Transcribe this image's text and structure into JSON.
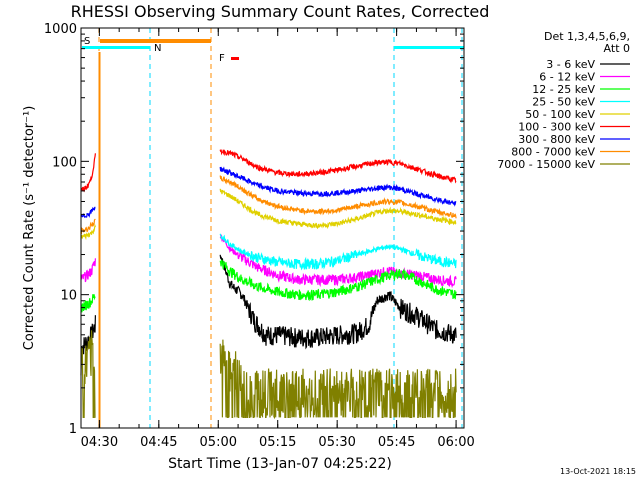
{
  "chart_data": {
    "type": "line",
    "title": "RHESSI Observing Summary Count Rates, Corrected",
    "xlabel": "Start Time (13-Jan-07 04:25:22)",
    "ylabel": "Corrected Count Rate (s⁻¹ detector⁻¹)",
    "y_scale": "log",
    "ylim": [
      1,
      1000
    ],
    "xlim": [
      "04:25:22",
      "06:02:00"
    ],
    "x_ticks": [
      "04:30",
      "04:45",
      "05:00",
      "05:15",
      "05:30",
      "05:45",
      "06:00"
    ],
    "y_ticks": [
      "1",
      "10",
      "100",
      "1000"
    ],
    "grid": false,
    "legend": {
      "position": "right",
      "header": [
        "Det 1,3,4,5,6,9,",
        "Att 0"
      ],
      "entries": [
        {
          "label": "3 - 6 keV",
          "color": "#000000"
        },
        {
          "label": "6 - 12 keV",
          "color": "#ff00ff"
        },
        {
          "label": "12 - 25 keV",
          "color": "#00ff00"
        },
        {
          "label": "25 - 50 keV",
          "color": "#00ffff"
        },
        {
          "label": "50 - 100 keV",
          "color": "#e0d000"
        },
        {
          "label": "100 - 300 keV",
          "color": "#ff0000"
        },
        {
          "label": "300 - 800 keV",
          "color": "#0000ff"
        },
        {
          "label": "800 - 7000 keV",
          "color": "#ff8c00"
        },
        {
          "label": "7000 - 15000 keV",
          "color": "#808000"
        }
      ]
    },
    "flags": [
      {
        "label": "S",
        "color": "#ff8c00"
      },
      {
        "label": "N",
        "color": "#00ffff"
      },
      {
        "label": "F",
        "color": "#ff0000"
      }
    ],
    "series": [
      {
        "name": "3 - 6 keV",
        "color": "#000000",
        "segments": [
          {
            "x": [
              "04:25:22",
              "04:27:00",
              "04:28:00",
              "04:29:00"
            ],
            "y": [
              4,
              4.5,
              5,
              6
            ]
          },
          {
            "x": [
              "05:00:30",
              "05:03:00",
              "05:06:00",
              "05:09:00",
              "05:12:00",
              "05:15:00",
              "05:20:00",
              "05:25:00",
              "05:30:00",
              "05:35:00",
              "05:38:00",
              "05:40:00",
              "05:43:00",
              "05:46:00",
              "05:50:00",
              "05:55:00",
              "06:00:00"
            ],
            "y": [
              20,
              12,
              10,
              6.5,
              5,
              5,
              4.8,
              4.8,
              5,
              5.2,
              6,
              9,
              10,
              8,
              7,
              5.5,
              5
            ]
          }
        ]
      },
      {
        "name": "6 - 12 keV",
        "color": "#ff00ff",
        "segments": [
          {
            "x": [
              "04:25:22",
              "04:27:00",
              "04:28:00",
              "04:29:00"
            ],
            "y": [
              13,
              14,
              15,
              18
            ]
          },
          {
            "x": [
              "05:00:30",
              "05:03:00",
              "05:06:00",
              "05:10:00",
              "05:15:00",
              "05:20:00",
              "05:25:00",
              "05:30:00",
              "05:35:00",
              "05:40:00",
              "05:43:00",
              "05:46:00",
              "05:50:00",
              "05:55:00",
              "06:00:00"
            ],
            "y": [
              28,
              22,
              19,
              16,
              14,
              13,
              13,
              13,
              13.5,
              14.5,
              15,
              14.5,
              14,
              13,
              12.5
            ]
          }
        ]
      },
      {
        "name": "12 - 25 keV",
        "color": "#00ff00",
        "segments": [
          {
            "x": [
              "04:25:22",
              "04:27:00",
              "04:28:00",
              "04:29:00"
            ],
            "y": [
              8,
              8.5,
              9,
              10
            ]
          },
          {
            "x": [
              "05:00:30",
              "05:03:00",
              "05:06:00",
              "05:10:00",
              "05:15:00",
              "05:20:00",
              "05:25:00",
              "05:30:00",
              "05:35:00",
              "05:40:00",
              "05:43:00",
              "05:46:00",
              "05:50:00",
              "05:55:00",
              "06:00:00"
            ],
            "y": [
              18,
              15,
              13,
              11.5,
              10.5,
              10,
              10,
              10.5,
              11.5,
              13,
              14,
              14.5,
              13,
              11,
              10
            ]
          }
        ]
      },
      {
        "name": "25 - 50 keV",
        "color": "#00ffff",
        "segments": [
          {
            "x": [
              "05:00:30",
              "05:03:00",
              "05:06:00",
              "05:10:00",
              "05:15:00",
              "05:20:00",
              "05:25:00",
              "05:30:00",
              "05:35:00",
              "05:40:00",
              "05:43:00",
              "05:46:00",
              "05:50:00",
              "05:55:00",
              "06:00:00"
            ],
            "y": [
              28,
              24,
              21,
              19,
              17.5,
              17,
              17,
              18,
              20,
              22,
              23,
              22,
              20,
              18,
              17
            ]
          }
        ]
      },
      {
        "name": "50 - 100 keV",
        "color": "#e0d000",
        "segments": [
          {
            "x": [
              "04:25:22",
              "04:27:00",
              "04:28:00",
              "04:29:00"
            ],
            "y": [
              27,
              28,
              29,
              32
            ]
          },
          {
            "x": [
              "05:00:30",
              "05:03:00",
              "05:06:00",
              "05:10:00",
              "05:15:00",
              "05:20:00",
              "05:25:00",
              "05:30:00",
              "05:35:00",
              "05:40:00",
              "05:43:00",
              "05:46:00",
              "05:50:00",
              "05:55:00",
              "06:00:00"
            ],
            "y": [
              60,
              55,
              48,
              40,
              36,
              34,
              33,
              34,
              37,
              41,
              43,
              42,
              40,
              37,
              35
            ]
          }
        ]
      },
      {
        "name": "100 - 300 keV",
        "color": "#ff0000",
        "segments": [
          {
            "x": [
              "04:25:22",
              "04:27:00",
              "04:28:00",
              "04:29:00"
            ],
            "y": [
              60,
              65,
              75,
              110
            ]
          },
          {
            "x": [
              "05:00:30",
              "05:03:00",
              "05:06:00",
              "05:10:00",
              "05:15:00",
              "05:20:00",
              "05:25:00",
              "05:30:00",
              "05:35:00",
              "05:40:00",
              "05:43:00",
              "05:46:00",
              "05:50:00",
              "05:55:00",
              "06:00:00"
            ],
            "y": [
              120,
              115,
              105,
              90,
              82,
              80,
              82,
              86,
              92,
              98,
              99,
              96,
              88,
              78,
              72
            ]
          }
        ]
      },
      {
        "name": "300 - 800 keV",
        "color": "#0000ff",
        "segments": [
          {
            "x": [
              "04:25:22",
              "04:27:00",
              "04:28:00",
              "04:29:00"
            ],
            "y": [
              38,
              40,
              42,
              46
            ]
          },
          {
            "x": [
              "05:00:30",
              "05:03:00",
              "05:06:00",
              "05:10:00",
              "05:15:00",
              "05:20:00",
              "05:25:00",
              "05:30:00",
              "05:35:00",
              "05:40:00",
              "05:43:00",
              "05:46:00",
              "05:50:00",
              "05:55:00",
              "06:00:00"
            ],
            "y": [
              88,
              82,
              75,
              66,
              60,
              58,
              57,
              58,
              60,
              63,
              64,
              62,
              57,
              52,
              48
            ]
          }
        ]
      },
      {
        "name": "800 - 7000 keV",
        "color": "#ff8c00",
        "segments": [
          {
            "x": [
              "04:25:22",
              "04:27:00",
              "04:28:00",
              "04:29:00"
            ],
            "y": [
              30,
              31,
              33,
              36
            ]
          },
          {
            "x": [
              "05:00:30",
              "05:03:00",
              "05:06:00",
              "05:10:00",
              "05:15:00",
              "05:20:00",
              "05:25:00",
              "05:30:00",
              "05:35:00",
              "05:40:00",
              "05:43:00",
              "05:46:00",
              "05:50:00",
              "05:55:00",
              "06:00:00"
            ],
            "y": [
              75,
              70,
              62,
              52,
              46,
              43,
              42,
              43,
              46,
              49,
              50,
              49,
              46,
              42,
              39
            ]
          }
        ]
      },
      {
        "name": "7000 - 15000 keV",
        "color": "#808000",
        "segments": [
          {
            "x": [
              "04:25:22",
              "04:27:00",
              "04:28:00",
              "04:29:00"
            ],
            "y": [
              3,
              3,
              4,
              4
            ]
          },
          {
            "x": [
              "05:00:30",
              "05:02:00",
              "05:04:00",
              "05:06:00",
              "05:08:00",
              "05:10:00",
              "05:15:00",
              "05:20:00",
              "05:25:00",
              "05:30:00",
              "05:35:00",
              "05:40:00",
              "05:45:00",
              "05:50:00",
              "05:55:00",
              "06:00:00"
            ],
            "y": [
              4,
              3,
              3,
              2,
              2,
              2,
              2,
              2,
              2,
              2,
              2,
              2,
              2,
              2,
              2,
              2
            ]
          }
        ]
      }
    ]
  },
  "footer": {
    "date_stamp": "13-Oct-2021 18:15"
  }
}
